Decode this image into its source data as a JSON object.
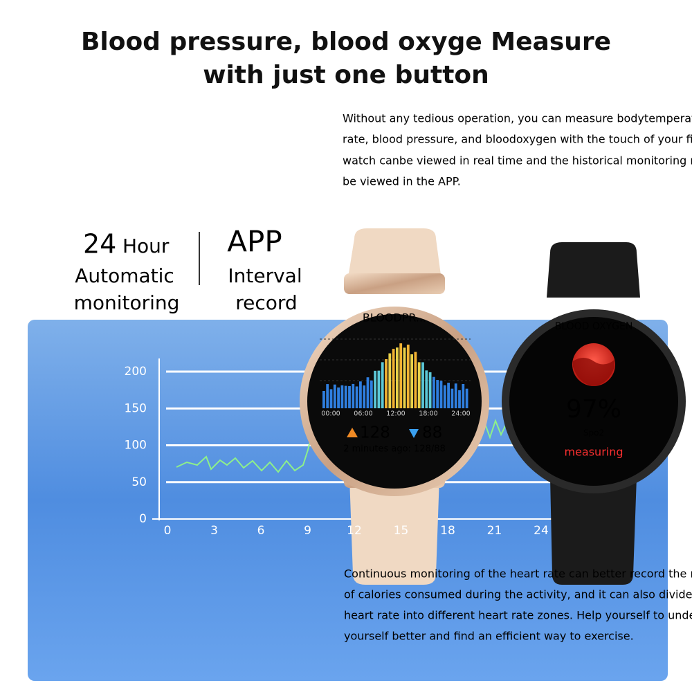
{
  "header": {
    "title": [
      "Blood pressure, blood oxyge Measure",
      "with just one button"
    ],
    "description": [
      "Without any tedious operation, you can measure bodytemperature, heart",
      "rate, blood pressure, and bloodoxygen with the touch of your finger.zodvboz",
      "watch canbe viewed in real time and the historical monitoring records can",
      "be viewed in the APP."
    ]
  },
  "features": [
    {
      "number": "24",
      "unit": "Hour",
      "lines": [
        "Automatic",
        "monitoring"
      ]
    },
    {
      "number": "APP",
      "lines": [
        "Interval",
        "record"
      ]
    }
  ],
  "background_chart": {
    "y_labels": [
      "200",
      "150",
      "100",
      "50",
      "0"
    ],
    "x_labels": [
      "0",
      "3",
      "6",
      "9",
      "12",
      "15",
      "18",
      "21",
      "24"
    ]
  },
  "watch_bp": {
    "title": "BLOODPR...",
    "times": [
      "00:00",
      "06:00",
      "12:00",
      "18:00",
      "24:00"
    ],
    "systolic": "128",
    "diastolic": "88",
    "note": "2 minutes ago: 128/88"
  },
  "watch_spo2": {
    "title": "BLOOD OXYGEN",
    "value": "97%",
    "label": "Spo2",
    "status": "measuring"
  },
  "footer": [
    "Continuous monitoring of the heart rate can better record the number",
    "of calories consumed during the activity, and it can also divide the",
    "heart rate into different heart rate zones. Help yourself to understand",
    "yourself better and find an efficient way to exercise."
  ]
}
